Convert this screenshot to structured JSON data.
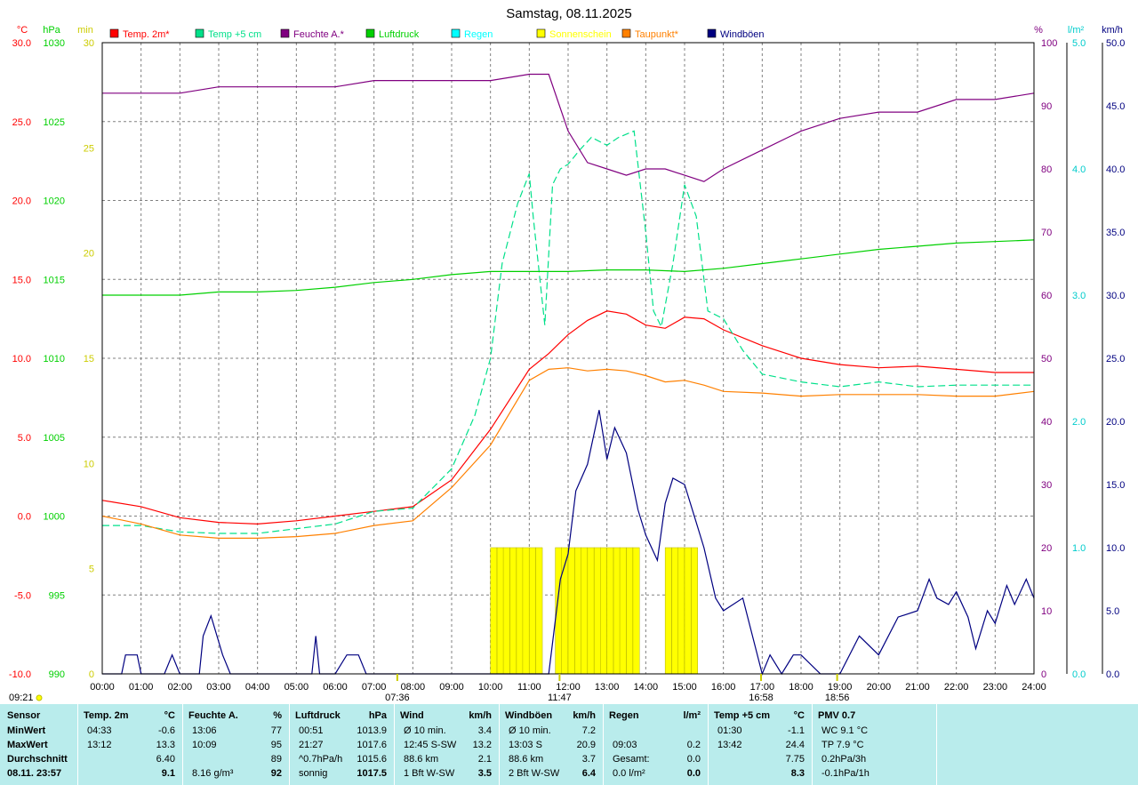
{
  "title": "Samstag, 08.11.2025",
  "units": {
    "c": "°C",
    "hpa": "hPa",
    "min": "min",
    "pct": "%",
    "lm": "l/m²",
    "kmh": "km/h"
  },
  "legend": [
    {
      "label": "Temp. 2m*",
      "color": "#ff0000"
    },
    {
      "label": "Temp +5 cm",
      "color": "#00e08a"
    },
    {
      "label": "Feuchte A.*",
      "color": "#800080"
    },
    {
      "label": "Luftdruck",
      "color": "#00d000"
    },
    {
      "label": "Regen",
      "color": "#00ffff"
    },
    {
      "label": "Sonnenschein",
      "color": "#ffff00"
    },
    {
      "label": "Taupunkt*",
      "color": "#ff8000"
    },
    {
      "label": "Windböen",
      "color": "#000080"
    }
  ],
  "axes": {
    "temp_ticks": [
      "30.0",
      "25.0",
      "20.0",
      "15.0",
      "10.0",
      "5.0",
      "0.0",
      "-5.0",
      "-10.0"
    ],
    "hpa_ticks": [
      "1030",
      "1025",
      "1020",
      "1015",
      "1010",
      "1005",
      "1000",
      "995",
      "990"
    ],
    "min_ticks": [
      "30",
      "25",
      "20",
      "15",
      "10",
      "5",
      "0"
    ],
    "pct_ticks": [
      "100",
      "90",
      "80",
      "70",
      "60",
      "50",
      "40",
      "30",
      "20",
      "10",
      "0"
    ],
    "rain_ticks": [
      "5.0",
      "4.0",
      "3.0",
      "2.0",
      "1.0",
      "0.0"
    ],
    "kmh_ticks": [
      "50.0",
      "45.0",
      "40.0",
      "35.0",
      "30.0",
      "25.0",
      "20.0",
      "15.0",
      "10.0",
      "5.0",
      "0.0"
    ],
    "x_ticks": [
      "00:00",
      "01:00",
      "02:00",
      "03:00",
      "04:00",
      "05:00",
      "06:00",
      "07:00",
      "08:00",
      "09:00",
      "10:00",
      "11:00",
      "12:00",
      "13:00",
      "14:00",
      "15:00",
      "16:00",
      "17:00",
      "18:00",
      "19:00",
      "20:00",
      "21:00",
      "22:00",
      "23:00",
      "24:00"
    ],
    "events": [
      {
        "label": "07:36",
        "hour": 7.6,
        "row": "upper"
      },
      {
        "label": "11:47",
        "hour": 11.78,
        "row": "lower"
      },
      {
        "label": "16:58",
        "hour": 16.97,
        "row": "upper"
      },
      {
        "label": "18:56",
        "hour": 18.93,
        "row": "lower"
      }
    ],
    "corner_time": "09:21"
  },
  "chart_data": {
    "type": "line",
    "x_unit": "hour of day",
    "xlim": [
      0,
      24
    ],
    "series": [
      {
        "name": "Temp. 2m*",
        "unit": "°C",
        "color": "#ff0000",
        "x": [
          0,
          1,
          2,
          3,
          4,
          5,
          6,
          7,
          8,
          9,
          10,
          11,
          11.5,
          12,
          12.5,
          13,
          13.5,
          14,
          14.5,
          15,
          15.5,
          16,
          17,
          18,
          19,
          20,
          21,
          22,
          23,
          24
        ],
        "y": [
          1.0,
          0.6,
          -0.1,
          -0.4,
          -0.5,
          -0.3,
          0,
          0.3,
          0.6,
          2.3,
          5.5,
          9.3,
          10.3,
          11.5,
          12.4,
          13.0,
          12.8,
          12.1,
          11.9,
          12.6,
          12.5,
          11.8,
          10.8,
          10.0,
          9.6,
          9.4,
          9.5,
          9.3,
          9.1,
          9.1
        ]
      },
      {
        "name": "Temp +5 cm",
        "unit": "°C",
        "color": "#00e08a",
        "x": [
          0,
          1,
          2,
          3,
          4,
          5,
          6,
          7,
          8,
          9,
          9.6,
          10,
          10.3,
          10.7,
          11,
          11.1,
          11.4,
          11.6,
          11.8,
          12,
          12.3,
          12.6,
          13,
          13.3,
          13.7,
          14,
          14.2,
          14.4,
          14.7,
          15,
          15.3,
          15.6,
          16,
          16.5,
          17,
          18,
          19,
          20,
          21,
          22,
          23,
          24
        ],
        "y": [
          -0.6,
          -0.6,
          -1.0,
          -1.1,
          -1.1,
          -0.8,
          -0.5,
          0.3,
          0.5,
          3.0,
          6.4,
          10.0,
          16.0,
          19.8,
          21.7,
          19.0,
          12.1,
          21.0,
          22.0,
          22.3,
          23.2,
          24.0,
          23.5,
          24.0,
          24.4,
          18.0,
          13.0,
          12.0,
          16.0,
          21.0,
          19.0,
          13.0,
          12.5,
          10.5,
          9.0,
          8.5,
          8.2,
          8.5,
          8.2,
          8.3,
          8.3,
          8.3
        ]
      },
      {
        "name": "Feuchte A.*",
        "unit": "%",
        "color": "#800080",
        "x": [
          0,
          1,
          2,
          3,
          4,
          5,
          6,
          7,
          8,
          9,
          10,
          11,
          11.5,
          12,
          12.5,
          13,
          13.5,
          14,
          14.5,
          15,
          15.5,
          16,
          17,
          18,
          19,
          20,
          21,
          22,
          23,
          24
        ],
        "y": [
          92,
          92,
          92,
          93,
          93,
          93,
          93,
          94,
          94,
          94,
          94,
          95,
          95,
          86,
          81,
          80,
          79,
          80,
          80,
          79,
          78,
          80,
          83,
          86,
          88,
          89,
          89,
          91,
          91,
          92
        ]
      },
      {
        "name": "Luftdruck",
        "unit": "hPa",
        "color": "#00d000",
        "x": [
          0,
          1,
          2,
          3,
          4,
          5,
          6,
          7,
          8,
          9,
          10,
          11,
          12,
          13,
          14,
          15,
          16,
          17,
          18,
          19,
          20,
          21,
          22,
          23,
          24
        ],
        "y": [
          1014.0,
          1014.0,
          1014.0,
          1014.2,
          1014.2,
          1014.3,
          1014.5,
          1014.8,
          1015.0,
          1015.3,
          1015.5,
          1015.5,
          1015.5,
          1015.6,
          1015.6,
          1015.5,
          1015.7,
          1016.0,
          1016.3,
          1016.6,
          1016.9,
          1017.1,
          1017.3,
          1017.4,
          1017.5
        ]
      },
      {
        "name": "Taupunkt*",
        "unit": "°C",
        "color": "#ff8000",
        "x": [
          0,
          1,
          2,
          3,
          4,
          5,
          6,
          7,
          8,
          9,
          10,
          11,
          11.5,
          12,
          12.5,
          13,
          13.5,
          14,
          14.5,
          15,
          15.5,
          16,
          17,
          18,
          19,
          20,
          21,
          22,
          23,
          24
        ],
        "y": [
          0.0,
          -0.5,
          -1.2,
          -1.4,
          -1.4,
          -1.3,
          -1.1,
          -0.6,
          -0.3,
          1.8,
          4.5,
          8.6,
          9.3,
          9.4,
          9.2,
          9.3,
          9.2,
          8.9,
          8.5,
          8.6,
          8.3,
          7.9,
          7.8,
          7.6,
          7.7,
          7.7,
          7.7,
          7.6,
          7.6,
          7.9
        ]
      },
      {
        "name": "Windböen",
        "unit": "km/h",
        "color": "#000080",
        "x": [
          0,
          0.5,
          0.6,
          0.9,
          1,
          1.6,
          1.8,
          2,
          2.5,
          2.6,
          2.8,
          3.1,
          3.3,
          3.5,
          4,
          5,
          5.4,
          5.5,
          5.6,
          6,
          6.3,
          6.6,
          6.8,
          7,
          8,
          9,
          10,
          11,
          11.5,
          11.8,
          12,
          12.2,
          12.5,
          12.8,
          13,
          13.2,
          13.5,
          13.8,
          14,
          14.3,
          14.5,
          14.7,
          15,
          15.3,
          15.5,
          15.8,
          16,
          16.5,
          17,
          17.2,
          17.5,
          17.8,
          18,
          18.5,
          19,
          19.5,
          20,
          20.5,
          21,
          21.3,
          21.5,
          21.8,
          22,
          22.3,
          22.5,
          22.8,
          23,
          23.3,
          23.5,
          23.8,
          24
        ],
        "y": [
          0,
          0,
          1.5,
          1.5,
          0,
          0,
          1.5,
          0,
          0,
          3.0,
          4.6,
          1.5,
          0,
          0,
          0,
          0,
          0,
          3.0,
          0,
          0,
          1.5,
          1.5,
          0,
          0,
          0,
          0,
          0,
          0,
          0,
          7.5,
          9.5,
          14.5,
          16.6,
          20.9,
          17.0,
          19.5,
          17.5,
          13.0,
          11.0,
          9.0,
          13.5,
          15.5,
          15.0,
          12.0,
          10.0,
          6.0,
          5.0,
          6.0,
          0,
          1.5,
          0,
          1.5,
          1.5,
          0,
          0,
          3.0,
          1.5,
          4.5,
          5.0,
          7.5,
          6.0,
          5.5,
          6.5,
          4.5,
          2.0,
          5.0,
          4.0,
          7.0,
          5.5,
          7.5,
          6.0
        ]
      },
      {
        "name": "Sonnenschein",
        "unit": "min",
        "color": "#ffff00",
        "x": [
          10.0,
          10.17,
          10.33,
          10.5,
          10.67,
          10.83,
          11.0,
          11.17,
          11.67,
          11.83,
          12.0,
          12.17,
          12.33,
          12.5,
          12.67,
          12.83,
          13.0,
          13.17,
          13.33,
          13.5,
          13.67,
          14.5,
          14.67,
          14.83,
          15.0,
          15.17
        ],
        "y": [
          6,
          6,
          6,
          6,
          6,
          6,
          6,
          6,
          6,
          6,
          6,
          6,
          6,
          6,
          6,
          6,
          6,
          6,
          6,
          6,
          6,
          6,
          6,
          6,
          6,
          6
        ]
      }
    ],
    "ylim_temp": [
      -10,
      30
    ],
    "ylim_hpa": [
      990,
      1030
    ],
    "ylim_min": [
      0,
      30
    ],
    "ylim_pct": [
      0,
      100
    ],
    "ylim_rain": [
      0,
      5
    ],
    "ylim_kmh": [
      0,
      50
    ]
  },
  "stats": {
    "row_labels": [
      "Sensor",
      "MinWert",
      "MaxWert",
      "Durchschnitt",
      "08.11. 23:57"
    ],
    "columns": [
      {
        "head": "Temp. 2m",
        "unit": "°C",
        "rows": [
          [
            "04:33",
            "-0.6"
          ],
          [
            "13:12",
            "13.3"
          ],
          [
            "",
            "6.40"
          ],
          [
            "",
            "9.1"
          ]
        ]
      },
      {
        "head": "Feuchte A.",
        "unit": "%",
        "rows": [
          [
            "13:06",
            "77"
          ],
          [
            "10:09",
            "95"
          ],
          [
            "",
            "89"
          ],
          [
            "8.16 g/m³",
            "92"
          ]
        ]
      },
      {
        "head": "Luftdruck",
        "unit": "hPa",
        "rows": [
          [
            "00:51",
            "1013.9"
          ],
          [
            "21:27",
            "1017.6"
          ],
          [
            "^0.7hPa/h",
            "1015.6"
          ],
          [
            "sonnig",
            "1017.5"
          ]
        ]
      },
      {
        "head": "Wind",
        "unit": "km/h",
        "rows": [
          [
            "Ø 10 min.",
            "3.4"
          ],
          [
            "12:45    S-SW",
            "13.2"
          ],
          [
            "88.6 km",
            "2.1"
          ],
          [
            "1 Bft W-SW",
            "3.5"
          ]
        ]
      },
      {
        "head": "Windböen",
        "unit": "km/h",
        "rows": [
          [
            "Ø 10 min.",
            "7.2"
          ],
          [
            "13:03        S",
            "20.9"
          ],
          [
            "88.6 km",
            "3.7"
          ],
          [
            "2 Bft W-SW",
            "6.4"
          ]
        ]
      },
      {
        "head": "Regen",
        "unit": "l/m²",
        "rows": [
          [
            "",
            ""
          ],
          [
            "09:03",
            "0.2"
          ],
          [
            "Gesamt:",
            "0.0"
          ],
          [
            "0.0 l/m²",
            "0.0"
          ]
        ]
      },
      {
        "head": "Temp +5 cm",
        "unit": "°C",
        "rows": [
          [
            "01:30",
            "-1.1"
          ],
          [
            "13:42",
            "24.4"
          ],
          [
            "",
            "7.75"
          ],
          [
            "",
            "8.3"
          ]
        ]
      },
      {
        "head": "PMV 0.7",
        "unit": "",
        "rows": [
          [
            "WC 9.1 °C",
            ""
          ],
          [
            "TP 7.9 °C",
            ""
          ],
          [
            "0.2hPa/3h",
            ""
          ],
          [
            "-0.1hPa/1h",
            ""
          ]
        ]
      }
    ]
  }
}
